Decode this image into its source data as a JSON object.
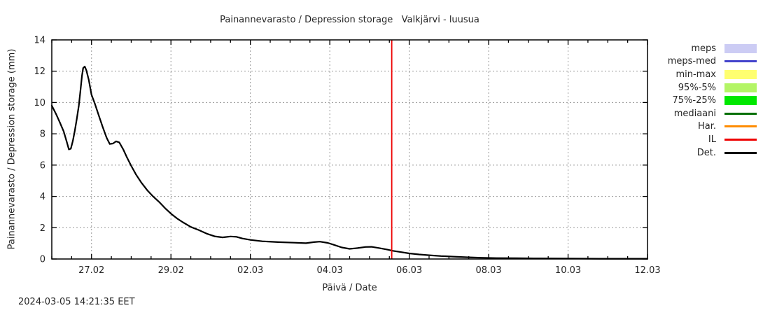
{
  "title": "Painannevarasto / Depression storage   Valkjärvi - luusua",
  "axes": {
    "y_label": "Painannevarasto / Depression storage (mm)",
    "x_label": "Päivä / Date"
  },
  "timestamp": "2024-03-05 14:21:35 EET",
  "legend": {
    "position": "outside-right",
    "items": [
      {
        "label": "meps",
        "swatch": "band",
        "color": "#ccccf4"
      },
      {
        "label": "meps-med",
        "swatch": "line",
        "color": "#4444cc"
      },
      {
        "label": "min-max",
        "swatch": "band",
        "color": "#ffff70"
      },
      {
        "label": "95%-5%",
        "swatch": "band",
        "color": "#b3f566"
      },
      {
        "label": "75%-25%",
        "swatch": "band",
        "color": "#00e800"
      },
      {
        "label": "mediaani",
        "swatch": "line",
        "color": "#006e00"
      },
      {
        "label": "Har.",
        "swatch": "line",
        "color": "#ff8c00"
      },
      {
        "label": "IL",
        "swatch": "line",
        "color": "#ee0000"
      },
      {
        "label": "Det.",
        "swatch": "line",
        "color": "#000000"
      }
    ]
  },
  "chart_data": {
    "type": "line",
    "title": "Painannevarasto / Depression storage   Valkjärvi - luusua",
    "xlabel": "Päivä / Date",
    "ylabel": "Painannevarasto / Depression storage (mm)",
    "ylim": [
      0,
      14
    ],
    "y_ticks": [
      0,
      2,
      4,
      6,
      8,
      10,
      12,
      14
    ],
    "grid": true,
    "grid_color": "#9a9a9a",
    "x_axis": {
      "unit": "days relative to 27.02 00:00 (2024, leap year)",
      "range": [
        -1,
        14
      ],
      "minor_tick_step_days": 0.5,
      "ticks": [
        {
          "t": 0,
          "label": "27.02"
        },
        {
          "t": 2,
          "label": "29.02"
        },
        {
          "t": 4,
          "label": "02.03"
        },
        {
          "t": 6,
          "label": "04.03"
        },
        {
          "t": 8,
          "label": "06.03"
        },
        {
          "t": 10,
          "label": "08.03"
        },
        {
          "t": 12,
          "label": "10.03"
        },
        {
          "t": 14,
          "label": "12.03"
        }
      ]
    },
    "series": [
      {
        "name": "Det.",
        "type": "line",
        "color": "#000000",
        "width": 2.2,
        "points": [
          [
            -1.0,
            9.8
          ],
          [
            -0.9,
            9.3
          ],
          [
            -0.8,
            8.75
          ],
          [
            -0.7,
            8.15
          ],
          [
            -0.62,
            7.45
          ],
          [
            -0.57,
            7.0
          ],
          [
            -0.52,
            7.05
          ],
          [
            -0.47,
            7.55
          ],
          [
            -0.42,
            8.2
          ],
          [
            -0.37,
            8.95
          ],
          [
            -0.32,
            9.8
          ],
          [
            -0.28,
            10.7
          ],
          [
            -0.24,
            11.7
          ],
          [
            -0.21,
            12.2
          ],
          [
            -0.17,
            12.3
          ],
          [
            -0.13,
            12.05
          ],
          [
            -0.07,
            11.45
          ],
          [
            0.0,
            10.5
          ],
          [
            0.08,
            9.95
          ],
          [
            0.18,
            9.2
          ],
          [
            0.28,
            8.45
          ],
          [
            0.38,
            7.75
          ],
          [
            0.46,
            7.35
          ],
          [
            0.54,
            7.38
          ],
          [
            0.62,
            7.52
          ],
          [
            0.7,
            7.45
          ],
          [
            0.8,
            7.0
          ],
          [
            0.9,
            6.45
          ],
          [
            1.0,
            5.95
          ],
          [
            1.12,
            5.4
          ],
          [
            1.25,
            4.9
          ],
          [
            1.4,
            4.4
          ],
          [
            1.55,
            4.0
          ],
          [
            1.7,
            3.65
          ],
          [
            1.85,
            3.25
          ],
          [
            2.0,
            2.9
          ],
          [
            2.15,
            2.6
          ],
          [
            2.3,
            2.35
          ],
          [
            2.5,
            2.05
          ],
          [
            2.7,
            1.85
          ],
          [
            2.9,
            1.62
          ],
          [
            3.1,
            1.45
          ],
          [
            3.3,
            1.38
          ],
          [
            3.5,
            1.44
          ],
          [
            3.65,
            1.42
          ],
          [
            3.8,
            1.31
          ],
          [
            4.0,
            1.22
          ],
          [
            4.3,
            1.13
          ],
          [
            4.7,
            1.08
          ],
          [
            5.1,
            1.04
          ],
          [
            5.4,
            1.01
          ],
          [
            5.6,
            1.08
          ],
          [
            5.75,
            1.11
          ],
          [
            5.95,
            1.03
          ],
          [
            6.1,
            0.91
          ],
          [
            6.3,
            0.74
          ],
          [
            6.5,
            0.65
          ],
          [
            6.7,
            0.7
          ],
          [
            6.9,
            0.77
          ],
          [
            7.05,
            0.78
          ],
          [
            7.25,
            0.7
          ],
          [
            7.45,
            0.6
          ],
          [
            7.6,
            0.52
          ],
          [
            7.8,
            0.44
          ],
          [
            8.0,
            0.36
          ],
          [
            8.25,
            0.29
          ],
          [
            8.5,
            0.24
          ],
          [
            8.8,
            0.19
          ],
          [
            9.1,
            0.15
          ],
          [
            9.45,
            0.11
          ],
          [
            9.8,
            0.08
          ],
          [
            10.2,
            0.06
          ],
          [
            10.7,
            0.05
          ],
          [
            11.3,
            0.04
          ],
          [
            12.0,
            0.03
          ],
          [
            12.8,
            0.02
          ],
          [
            14.0,
            0.02
          ]
        ]
      },
      {
        "name": "IL",
        "type": "vline",
        "color": "#ee0000",
        "width": 1.8,
        "t": 7.56
      }
    ]
  }
}
